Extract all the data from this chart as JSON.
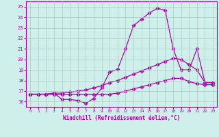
{
  "xlabel": "Windchill (Refroidissement éolien,°C)",
  "bg_color": "#cff0ea",
  "grid_color": "#b0c8c4",
  "line_color": "#aa00aa",
  "xlim": [
    -0.5,
    23.5
  ],
  "ylim": [
    15.5,
    25.5
  ],
  "yticks": [
    16,
    17,
    18,
    19,
    20,
    21,
    22,
    23,
    24,
    25
  ],
  "xticks": [
    0,
    1,
    2,
    3,
    4,
    5,
    6,
    7,
    8,
    9,
    10,
    11,
    12,
    13,
    14,
    15,
    16,
    17,
    18,
    19,
    20,
    21,
    22,
    23
  ],
  "line1_x": [
    0,
    1,
    2,
    3,
    4,
    5,
    6,
    7,
    8,
    9,
    10,
    11,
    12,
    13,
    14,
    15,
    16,
    17,
    18,
    19,
    20,
    21,
    22,
    23
  ],
  "line1_y": [
    16.7,
    16.7,
    16.7,
    16.8,
    16.2,
    16.2,
    16.1,
    15.85,
    16.3,
    17.3,
    18.8,
    19.05,
    21.0,
    23.2,
    23.8,
    24.4,
    24.85,
    24.65,
    21.0,
    19.0,
    19.0,
    21.0,
    17.8,
    17.8
  ],
  "line2_x": [
    0,
    1,
    2,
    3,
    4,
    5,
    6,
    7,
    8,
    9,
    10,
    11,
    12,
    13,
    14,
    15,
    16,
    17,
    18,
    19,
    20,
    21,
    22,
    23
  ],
  "line2_y": [
    16.7,
    16.7,
    16.7,
    16.8,
    16.8,
    16.9,
    17.0,
    17.1,
    17.3,
    17.5,
    17.8,
    18.0,
    18.3,
    18.6,
    18.9,
    19.2,
    19.5,
    19.8,
    20.1,
    20.0,
    19.5,
    19.0,
    17.8,
    17.8
  ],
  "line3_x": [
    0,
    1,
    2,
    3,
    4,
    5,
    6,
    7,
    8,
    9,
    10,
    11,
    12,
    13,
    14,
    15,
    16,
    17,
    18,
    19,
    20,
    21,
    22,
    23
  ],
  "line3_y": [
    16.7,
    16.7,
    16.7,
    16.7,
    16.7,
    16.7,
    16.7,
    16.7,
    16.7,
    16.7,
    16.7,
    16.8,
    17.0,
    17.2,
    17.4,
    17.6,
    17.8,
    18.0,
    18.2,
    18.2,
    17.9,
    17.7,
    17.6,
    17.6
  ]
}
